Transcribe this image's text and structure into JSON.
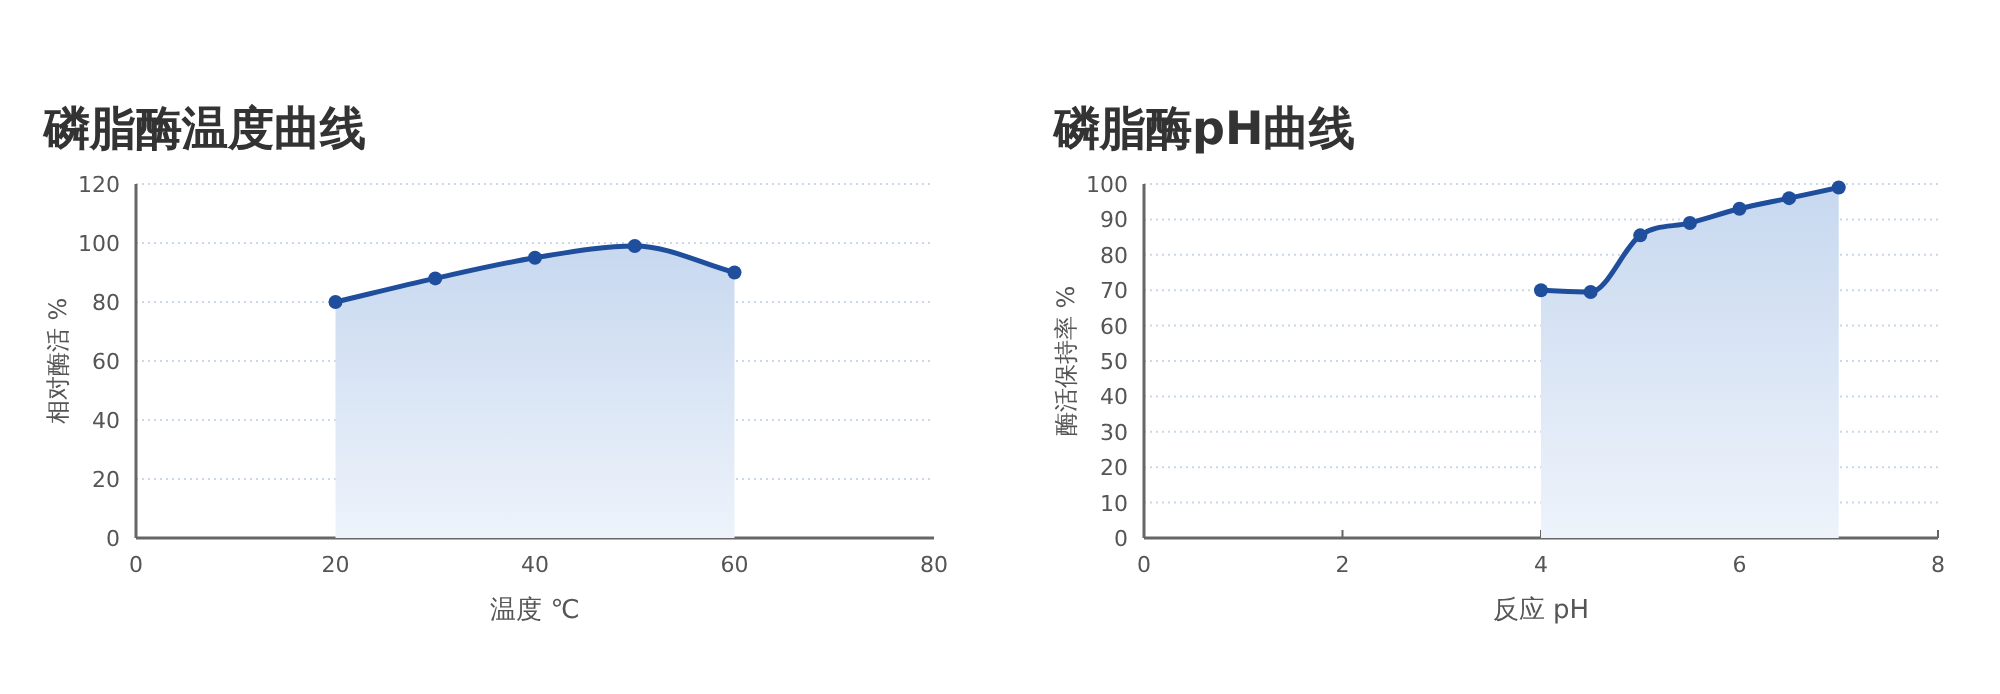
{
  "chart_data": [
    {
      "type": "area",
      "title": "磷脂酶温度曲线",
      "xlabel": "温度 ℃",
      "ylabel": "相对酶活 %",
      "x": [
        20,
        30,
        40,
        50,
        60
      ],
      "series": [
        {
          "color": "#1f4e9c",
          "values": [
            80,
            88,
            95,
            99,
            90
          ]
        }
      ],
      "xlim": [
        0,
        80
      ],
      "xticks": [
        0,
        20,
        40,
        60,
        80
      ],
      "ylim": [
        0,
        120
      ],
      "yticks": [
        0,
        20,
        40,
        60,
        80,
        100,
        120
      ],
      "grid": "y",
      "marker": "circle",
      "line_style": "solid"
    },
    {
      "type": "area",
      "title": "磷脂酶pH曲线",
      "xlabel": "反应 pH",
      "ylabel": "酶活保持率 %",
      "x": [
        4,
        4.5,
        5,
        5.5,
        6,
        6.5,
        7
      ],
      "series": [
        {
          "color": "#1f4e9c",
          "values": [
            70,
            69.5,
            85.5,
            89,
            93,
            96,
            99
          ]
        }
      ],
      "xlim": [
        0,
        8
      ],
      "xticks": [
        0,
        2,
        4,
        6,
        8
      ],
      "ylim": [
        0,
        100
      ],
      "yticks": [
        0,
        10,
        20,
        30,
        40,
        50,
        60,
        70,
        80,
        90,
        100
      ],
      "grid": "y",
      "marker": "circle",
      "line_style": "solid"
    }
  ]
}
